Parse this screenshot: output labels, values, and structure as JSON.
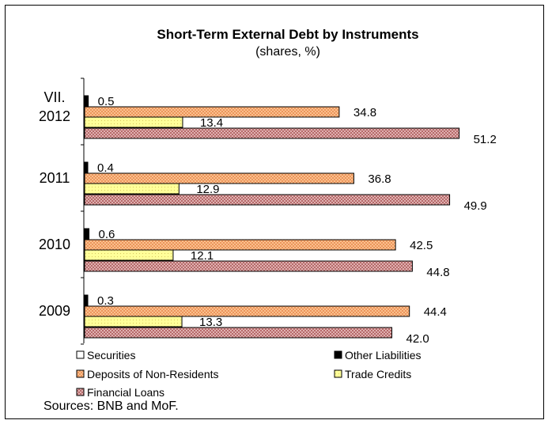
{
  "chart_data": {
    "type": "bar",
    "orientation": "horizontal",
    "title": "Short-Term External Debt by Instruments",
    "subtitle": "(shares, %)",
    "categories": [
      [
        "VII.",
        "2012"
      ],
      [
        "2011"
      ],
      [
        "2010"
      ],
      [
        "2009"
      ]
    ],
    "series": [
      {
        "name": "Securities",
        "values": [
          0,
          0,
          0,
          0
        ],
        "color": "#ffffff",
        "pattern": "none",
        "labels": false
      },
      {
        "name": "Other Liabilities",
        "values": [
          0.5,
          0.4,
          0.6,
          0.3
        ],
        "color": "#000000",
        "pattern": "none",
        "labels": true
      },
      {
        "name": "Deposits of Non-Residents",
        "values": [
          34.8,
          36.8,
          42.5,
          44.4
        ],
        "color": "#ffcc99",
        "pattern": "crosshatch",
        "labels": true
      },
      {
        "name": "Trade Credits",
        "values": [
          13.4,
          12.9,
          12.1,
          13.3
        ],
        "color": "#ffff99",
        "pattern": "dots",
        "labels": true
      },
      {
        "name": "Financial Loans",
        "values": [
          51.2,
          49.9,
          44.8,
          42.0
        ],
        "color": "#cc9999",
        "pattern": "checker",
        "labels": true
      }
    ],
    "xlim": [
      0,
      60
    ],
    "grid": false,
    "legend_position": "bottom",
    "source": "Sources: BNB and MoF."
  }
}
